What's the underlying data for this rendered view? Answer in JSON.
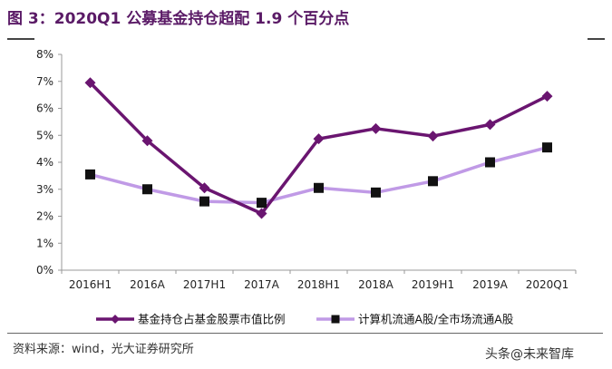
{
  "header": {
    "title": "图 3：2020Q1 公募基金持仓超配 1.9 个百分点"
  },
  "footer": {
    "source": "资料来源：wind，光大证券研究所",
    "watermark_prefix": "头条 ",
    "watermark_handle": "@未来智库"
  },
  "colors": {
    "title": "#5a1a66",
    "series1": "#6a1570",
    "series2": "#c09ae6",
    "marker2": "#111111",
    "axis": "#999999"
  },
  "chart_data": {
    "type": "line",
    "categories": [
      "2016H1",
      "2016A",
      "2017H1",
      "2017A",
      "2018H1",
      "2018A",
      "2019H1",
      "2019A",
      "2020Q1"
    ],
    "y_tick_labels": [
      "0%",
      "1%",
      "2%",
      "3%",
      "4%",
      "5%",
      "6%",
      "7%",
      "8%"
    ],
    "ylim": [
      0,
      8
    ],
    "y_unit": "%",
    "grid": false,
    "legend_position": "bottom",
    "series": [
      {
        "name": "基金持仓占基金股票市值比例",
        "marker": "diamond",
        "values": [
          6.95,
          4.8,
          3.05,
          2.1,
          4.87,
          5.25,
          4.97,
          5.4,
          6.45
        ]
      },
      {
        "name": "计算机流通A股/全市场流通A股",
        "marker": "square",
        "values": [
          3.55,
          3.0,
          2.55,
          2.5,
          3.05,
          2.88,
          3.3,
          4.0,
          4.55
        ]
      }
    ]
  }
}
